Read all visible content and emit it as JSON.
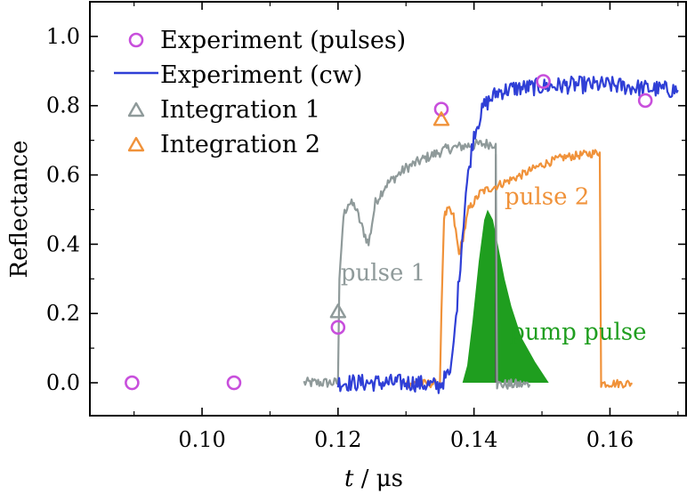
{
  "chart_data": {
    "type": "line",
    "title": "",
    "xlabel_italic": "t",
    "xlabel_unit": " / μs",
    "ylabel": "Reflectance",
    "xlim": [
      0.0835,
      0.1712
    ],
    "ylim": [
      -0.095,
      1.1
    ],
    "xticks": [
      0.1,
      0.12,
      0.14,
      0.16
    ],
    "xtick_labels": [
      "0.10",
      "0.12",
      "0.14",
      "0.16"
    ],
    "yticks": [
      0.0,
      0.2,
      0.4,
      0.6,
      0.8,
      1.0
    ],
    "ytick_labels": [
      "0.0",
      "0.2",
      "0.4",
      "0.6",
      "0.8",
      "1.0"
    ],
    "legend_position": "top-left",
    "colors": {
      "pulses": "#c84fdc",
      "cw": "#2f3fd6",
      "integration1": "#8f9a9a",
      "integration2": "#f0923a",
      "pump": "#1f9e1f",
      "pump_edge": "#555555"
    },
    "legend": [
      {
        "label": "Experiment (pulses)",
        "marker": "circle",
        "color": "#c84fdc"
      },
      {
        "label": "Experiment (cw)",
        "marker": "line",
        "color": "#2f3fd6"
      },
      {
        "label": "Integration 1",
        "marker": "triangle",
        "color": "#8f9a9a"
      },
      {
        "label": "Integration 2",
        "marker": "triangle",
        "color": "#f0923a"
      }
    ],
    "series": [
      {
        "name": "Experiment (pulses)",
        "marker": "circle",
        "points": [
          {
            "x": 0.0897,
            "y": 0.0
          },
          {
            "x": 0.1047,
            "y": 0.0
          },
          {
            "x": 0.12,
            "y": 0.16
          },
          {
            "x": 0.1352,
            "y": 0.79
          },
          {
            "x": 0.1502,
            "y": 0.87
          },
          {
            "x": 0.1652,
            "y": 0.815
          }
        ]
      },
      {
        "name": "Integration 1",
        "marker": "triangle",
        "points": [
          {
            "x": 0.12,
            "y": 0.205
          }
        ]
      },
      {
        "name": "Integration 2",
        "marker": "triangle",
        "points": [
          {
            "x": 0.1352,
            "y": 0.76
          }
        ]
      },
      {
        "name": "Experiment (cw)",
        "line": true,
        "noise": 0.025,
        "points": [
          [
            0.12,
            0.0
          ],
          [
            0.131,
            0.0
          ],
          [
            0.1348,
            -0.01
          ],
          [
            0.1365,
            0.03
          ],
          [
            0.1372,
            0.15
          ],
          [
            0.138,
            0.35
          ],
          [
            0.1388,
            0.55
          ],
          [
            0.14,
            0.72
          ],
          [
            0.1415,
            0.8
          ],
          [
            0.1435,
            0.84
          ],
          [
            0.146,
            0.85
          ],
          [
            0.15,
            0.855
          ],
          [
            0.155,
            0.86
          ],
          [
            0.16,
            0.86
          ],
          [
            0.165,
            0.85
          ],
          [
            0.17,
            0.845
          ]
        ]
      },
      {
        "name": "pulse 1 (Integration 1 trace)",
        "line": true,
        "noise": 0.015,
        "points": [
          [
            0.115,
            0.0
          ],
          [
            0.12,
            0.0
          ],
          [
            0.1202,
            0.3
          ],
          [
            0.1208,
            0.48
          ],
          [
            0.1215,
            0.52
          ],
          [
            0.1225,
            0.51
          ],
          [
            0.1235,
            0.45
          ],
          [
            0.1245,
            0.4
          ],
          [
            0.1255,
            0.52
          ],
          [
            0.127,
            0.57
          ],
          [
            0.13,
            0.62
          ],
          [
            0.133,
            0.65
          ],
          [
            0.136,
            0.675
          ],
          [
            0.139,
            0.685
          ],
          [
            0.1415,
            0.69
          ],
          [
            0.1432,
            0.69
          ],
          [
            0.1434,
            -0.005
          ],
          [
            0.1482,
            -0.005
          ]
        ]
      },
      {
        "name": "pulse 2 (Integration 2 trace)",
        "line": true,
        "noise": 0.012,
        "points": [
          [
            0.13,
            -0.002
          ],
          [
            0.135,
            -0.002
          ],
          [
            0.1352,
            0.2
          ],
          [
            0.1356,
            0.48
          ],
          [
            0.1362,
            0.5
          ],
          [
            0.137,
            0.48
          ],
          [
            0.1378,
            0.37
          ],
          [
            0.1384,
            0.42
          ],
          [
            0.1392,
            0.5
          ],
          [
            0.141,
            0.55
          ],
          [
            0.1435,
            0.57
          ],
          [
            0.147,
            0.6
          ],
          [
            0.15,
            0.63
          ],
          [
            0.153,
            0.65
          ],
          [
            0.1565,
            0.66
          ],
          [
            0.1585,
            0.665
          ],
          [
            0.1587,
            -0.002
          ],
          [
            0.1633,
            -0.002
          ]
        ]
      },
      {
        "name": "pump pulse",
        "fill": true,
        "points": [
          [
            0.1383,
            0.0
          ],
          [
            0.139,
            0.05
          ],
          [
            0.1398,
            0.18
          ],
          [
            0.1407,
            0.35
          ],
          [
            0.1415,
            0.47
          ],
          [
            0.142,
            0.5
          ],
          [
            0.1428,
            0.47
          ],
          [
            0.1435,
            0.4
          ],
          [
            0.1445,
            0.3
          ],
          [
            0.1455,
            0.22
          ],
          [
            0.147,
            0.13
          ],
          [
            0.149,
            0.06
          ],
          [
            0.1505,
            0.015
          ],
          [
            0.151,
            0.0
          ]
        ]
      }
    ],
    "annotations": [
      {
        "text": "pulse 1",
        "x": 0.1204,
        "y": 0.295,
        "color": "#8f9a9a"
      },
      {
        "text": "pulse 2",
        "x": 0.1445,
        "y": 0.515,
        "color": "#f0923a"
      },
      {
        "text": "pump pulse",
        "x": 0.1453,
        "y": 0.125,
        "color": "#1f9e1f"
      }
    ]
  }
}
